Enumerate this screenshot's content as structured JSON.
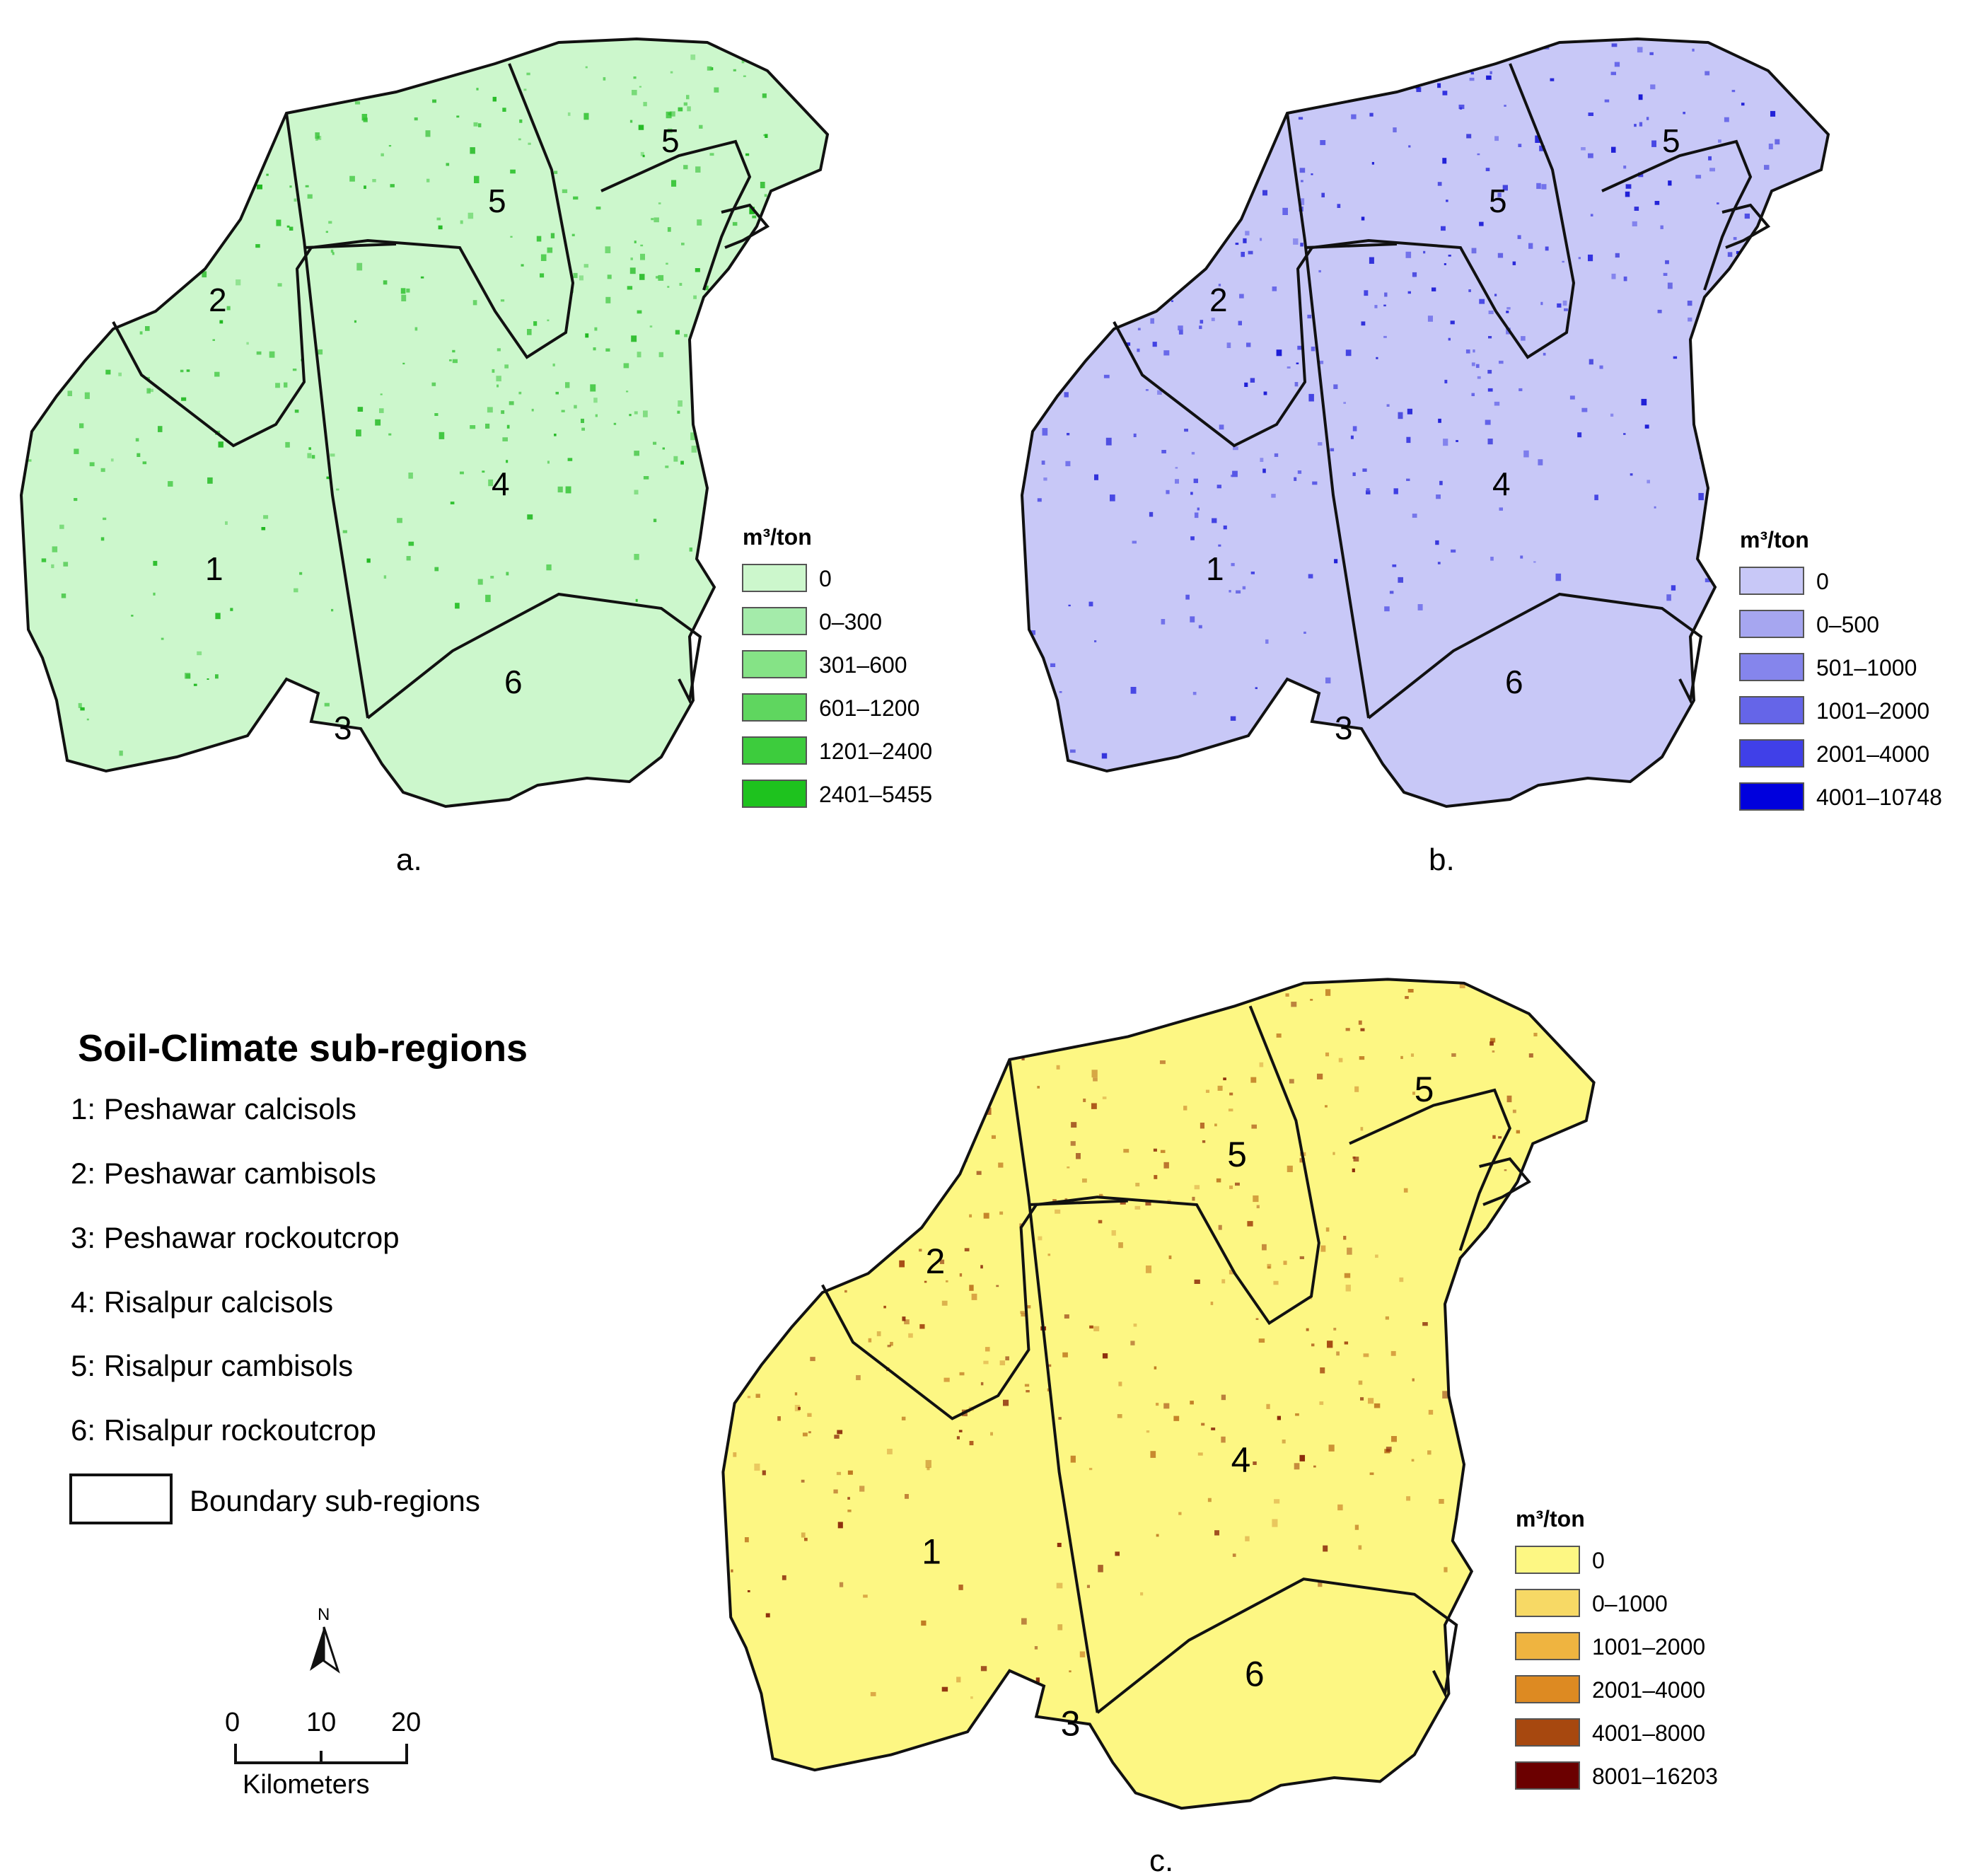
{
  "maps": [
    {
      "id": "a",
      "caption": "a.",
      "legend_title": "m³/ton",
      "base_color": "#ccf7cc",
      "speckle_colors": [
        "#2fc22f",
        "#1fb81f",
        "#57cf57"
      ],
      "classes": [
        {
          "label": "0",
          "color": "#ccf7cc"
        },
        {
          "label": "0–300",
          "color": "#a4ebaa"
        },
        {
          "label": "301–600",
          "color": "#85e386"
        },
        {
          "label": "601–1200",
          "color": "#5fd65f"
        },
        {
          "label": "1201–2400",
          "color": "#3dcc3d"
        },
        {
          "label": "2401–5455",
          "color": "#1ec21e"
        }
      ],
      "region_numbers": [
        "1",
        "2",
        "3",
        "4",
        "5",
        "5",
        "6"
      ]
    },
    {
      "id": "b",
      "caption": "b.",
      "legend_title": "m³/ton",
      "base_color": "#c8c8f7",
      "speckle_colors": [
        "#1a1ad6",
        "#3030e0",
        "#5555e6"
      ],
      "classes": [
        {
          "label": "0",
          "color": "#c8c8f7"
        },
        {
          "label": "0–500",
          "color": "#a6a6f0"
        },
        {
          "label": "501–1000",
          "color": "#8585ec"
        },
        {
          "label": "1001–2000",
          "color": "#6565e8"
        },
        {
          "label": "2001–4000",
          "color": "#4040e8"
        },
        {
          "label": "4001–10748",
          "color": "#0000dd"
        }
      ],
      "region_numbers": [
        "1",
        "2",
        "3",
        "4",
        "5",
        "5",
        "6"
      ]
    },
    {
      "id": "c",
      "caption": "c.",
      "legend_title": "m³/ton",
      "base_color": "#fdf783",
      "speckle_colors": [
        "#8b2a0a",
        "#a64a12",
        "#c07a22",
        "#d8a040"
      ],
      "classes": [
        {
          "label": "0",
          "color": "#fdf783"
        },
        {
          "label": "0–1000",
          "color": "#f7d965"
        },
        {
          "label": "1001–2000",
          "color": "#efb440"
        },
        {
          "label": "2001–4000",
          "color": "#dd8a22"
        },
        {
          "label": "4001–8000",
          "color": "#a7480f"
        },
        {
          "label": "8001–16203",
          "color": "#6b0000"
        }
      ],
      "region_numbers": [
        "1",
        "2",
        "3",
        "4",
        "5",
        "5",
        "6"
      ]
    }
  ],
  "subregions": {
    "title": "Soil-Climate sub-regions",
    "items": [
      "1: Peshawar calcisols",
      "2: Peshawar cambisols",
      "3: Peshawar rockoutcrop",
      "4: Risalpur calcisols",
      "5: Risalpur cambisols",
      "6: Risalpur rockoutcrop"
    ],
    "boundary_label": "Boundary sub-regions"
  },
  "north_arrow": {
    "label": "N"
  },
  "scale_bar": {
    "ticks": [
      "0",
      "10",
      "20"
    ],
    "unit": "Kilometers"
  }
}
